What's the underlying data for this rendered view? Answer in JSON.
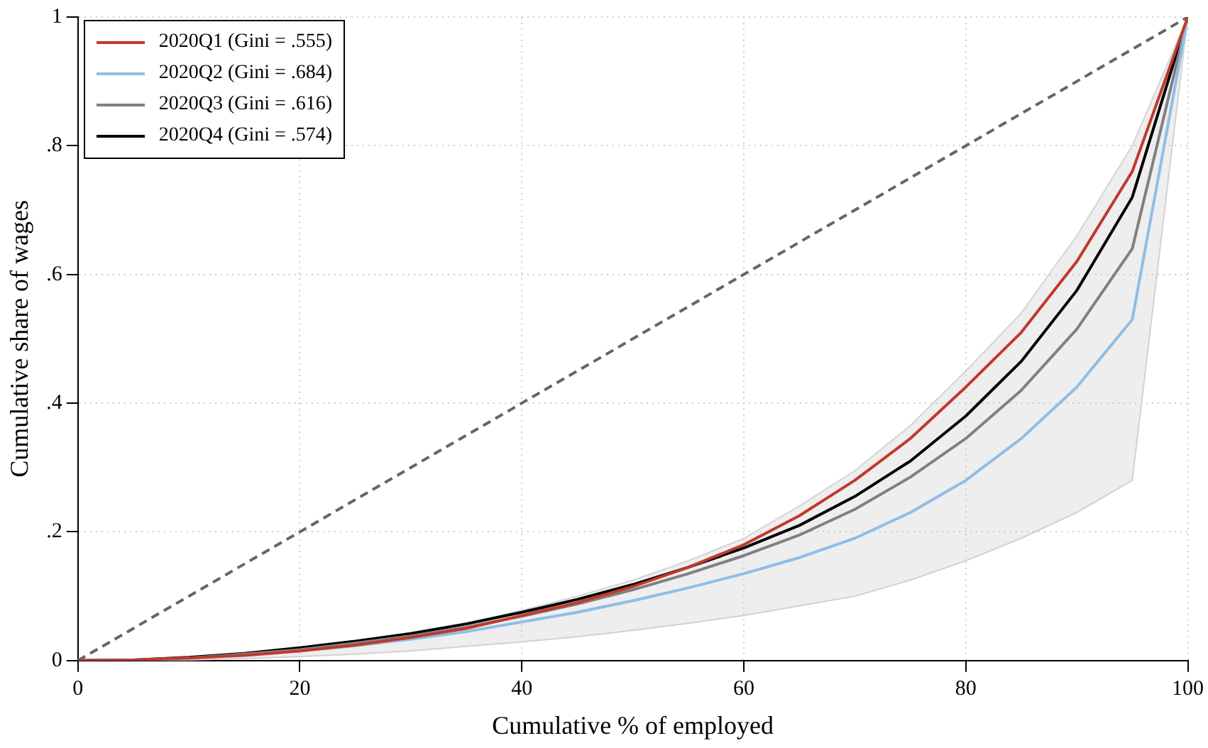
{
  "chart_data": {
    "type": "line",
    "xlabel": "Cumulative % of employed",
    "ylabel": "Cumulative share of wages",
    "x": [
      0,
      5,
      10,
      15,
      20,
      25,
      30,
      35,
      40,
      45,
      50,
      55,
      60,
      65,
      70,
      75,
      80,
      85,
      90,
      95,
      100
    ],
    "xlim": [
      0,
      100
    ],
    "xticks": [
      0,
      20,
      40,
      60,
      80,
      100
    ],
    "ylim": [
      0,
      1
    ],
    "yticks": [
      0,
      {
        "value": 0.2,
        "label": ".2"
      },
      {
        "value": 0.4,
        "label": ".4"
      },
      {
        "value": 0.6,
        "label": ".6"
      },
      {
        "value": 0.8,
        "label": ".8"
      },
      1
    ],
    "grid": true,
    "legend": "top left",
    "marker": "none",
    "series": [
      {
        "name": "2020Q1 (Gini = .555)",
        "color": "#c0392b",
        "values": [
          0,
          0.001,
          0.004,
          0.008,
          0.015,
          0.024,
          0.036,
          0.05,
          0.07,
          0.09,
          0.115,
          0.145,
          0.18,
          0.225,
          0.28,
          0.345,
          0.425,
          0.51,
          0.62,
          0.76,
          1
        ]
      },
      {
        "name": "2020Q2 (Gini = .684)",
        "color": "#8fbde6",
        "values": [
          null,
          null,
          null,
          0.008,
          0.015,
          0.023,
          0.033,
          0.045,
          0.06,
          0.075,
          0.093,
          0.113,
          0.135,
          0.16,
          0.19,
          0.23,
          0.28,
          0.345,
          0.425,
          0.53,
          1
        ],
        "lower": [
          0,
          0,
          0.001,
          0.003,
          0.006,
          0.01,
          0.015,
          0.022,
          0.029,
          0.037,
          0.047,
          0.058,
          0.07,
          0.085,
          0.1,
          0.125,
          0.155,
          0.19,
          0.23,
          0.28,
          1
        ],
        "upper": [
          0,
          0.002,
          0.006,
          0.012,
          0.02,
          0.031,
          0.043,
          0.058,
          0.078,
          0.1,
          0.125,
          0.155,
          0.19,
          0.24,
          0.295,
          0.365,
          0.45,
          0.54,
          0.66,
          0.8,
          1
        ]
      },
      {
        "name": "2020Q3 (Gini = .616)",
        "color": "#808080",
        "values": [
          0,
          0.001,
          0.004,
          0.01,
          0.017,
          0.027,
          0.038,
          0.052,
          0.069,
          0.088,
          0.11,
          0.135,
          0.163,
          0.195,
          0.235,
          0.285,
          0.345,
          0.42,
          0.515,
          0.64,
          1
        ]
      },
      {
        "name": "2020Q4 (Gini = .574)",
        "color": "#000000",
        "values": [
          0,
          0.001,
          0.005,
          0.011,
          0.02,
          0.03,
          0.042,
          0.057,
          0.075,
          0.095,
          0.118,
          0.145,
          0.175,
          0.21,
          0.255,
          0.31,
          0.38,
          0.465,
          0.575,
          0.72,
          1
        ]
      },
      {
        "type": "line",
        "color": "#666666",
        "line_style": "dashed",
        "x": [
          0,
          100
        ],
        "values": [
          0,
          1
        ]
      }
    ]
  }
}
